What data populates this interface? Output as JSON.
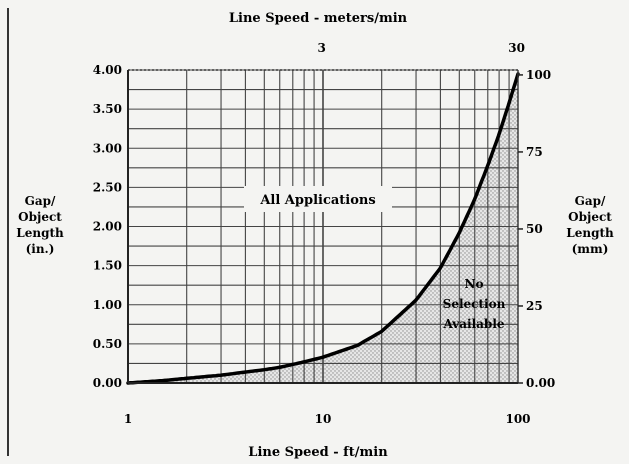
{
  "chart_data": {
    "type": "line",
    "xscale": "log",
    "xlabel": "Line Speed - ft/min",
    "x2label": "Line Speed - meters/min",
    "ylabel": "Gap/ Object Length (in.)",
    "y2label": "Gap/ Object Length (mm)",
    "xlim": [
      1,
      100
    ],
    "ylim": [
      0,
      4.0
    ],
    "y2lim": [
      0,
      100
    ],
    "x_ticks": [
      "1",
      "10",
      "100"
    ],
    "x2_ticks": [
      "3",
      "30"
    ],
    "y_ticks": [
      "0.00",
      "0.50",
      "1.00",
      "1.50",
      "2.00",
      "2.50",
      "3.00",
      "3.50",
      "4.00"
    ],
    "y2_ticks": [
      "0.00",
      "25",
      "50",
      "75",
      "100"
    ],
    "grid": true,
    "series": [
      {
        "x": [
          1,
          1.5,
          2,
          3,
          4,
          5,
          6,
          8,
          10,
          15,
          20,
          30,
          40,
          50,
          60,
          70,
          80,
          90,
          100
        ],
        "y": [
          0.0,
          0.03,
          0.06,
          0.1,
          0.14,
          0.17,
          0.2,
          0.27,
          0.33,
          0.48,
          0.66,
          1.06,
          1.47,
          1.92,
          2.35,
          2.78,
          3.18,
          3.58,
          3.95
        ]
      }
    ],
    "annotations": [
      {
        "text": "All Applications",
        "region": "above-curve"
      },
      {
        "text": "No Selection Available",
        "region": "below-curve"
      }
    ]
  }
}
